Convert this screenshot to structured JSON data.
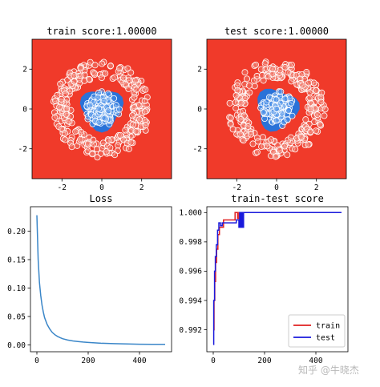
{
  "chart_data": [
    {
      "type": "scatter",
      "title": "train score:1.00000",
      "xlabel": "",
      "ylabel": "",
      "xlim": [
        -3.5,
        3.5
      ],
      "ylim": [
        -3.5,
        3.5
      ],
      "xticks": [
        "-2",
        "0",
        "2"
      ],
      "xtick_values": [
        -2,
        0,
        2
      ],
      "yticks": [
        "2",
        "0",
        "-2"
      ],
      "ytick_values": [
        2,
        0,
        -2
      ],
      "background_color": "#f03a2a",
      "inner_region_color": "#2a72d8",
      "inner_region_radius": 1.1,
      "inner_ring": {
        "radius_mean": 0.35,
        "radius_spread": 0.55,
        "count": 170
      },
      "outer_ring": {
        "radius_mean": 2.0,
        "radius_spread": 0.45,
        "count": 260
      },
      "grid": false
    },
    {
      "type": "scatter",
      "title": "test score:1.00000",
      "xlabel": "",
      "ylabel": "",
      "xlim": [
        -3.5,
        3.5
      ],
      "ylim": [
        -3.5,
        3.5
      ],
      "xticks": [
        "-2",
        "0",
        "2"
      ],
      "xtick_values": [
        -2,
        0,
        2
      ],
      "yticks": [
        "2",
        "0",
        "-2"
      ],
      "ytick_values": [
        2,
        0,
        -2
      ],
      "background_color": "#f03a2a",
      "inner_region_color": "#2a72d8",
      "inner_region_radius": 1.1,
      "inner_ring": {
        "radius_mean": 0.35,
        "radius_spread": 0.55,
        "count": 170
      },
      "outer_ring": {
        "radius_mean": 2.0,
        "radius_spread": 0.45,
        "count": 260
      },
      "grid": false
    },
    {
      "type": "line",
      "title": "Loss",
      "xlabel": "",
      "ylabel": "",
      "xlim": [
        -25,
        525
      ],
      "ylim": [
        -0.012,
        0.243
      ],
      "xticks": [
        "0",
        "200",
        "400"
      ],
      "xtick_values": [
        0,
        200,
        400
      ],
      "yticks": [
        "0.20",
        "0.15",
        "0.10",
        "0.05",
        "0.00"
      ],
      "ytick_values": [
        0.2,
        0.15,
        0.1,
        0.05,
        0.0
      ],
      "series": [
        {
          "color": "#3a86c8",
          "x": [
            0,
            5,
            10,
            15,
            20,
            25,
            30,
            40,
            50,
            60,
            70,
            80,
            90,
            100,
            120,
            140,
            160,
            180,
            200,
            250,
            300,
            350,
            400,
            450,
            500
          ],
          "y": [
            0.228,
            0.15,
            0.11,
            0.087,
            0.07,
            0.058,
            0.048,
            0.036,
            0.028,
            0.022,
            0.018,
            0.015,
            0.013,
            0.011,
            0.0085,
            0.007,
            0.006,
            0.005,
            0.0043,
            0.003,
            0.0022,
            0.0017,
            0.0013,
            0.0011,
            0.0009
          ]
        }
      ],
      "grid": false
    },
    {
      "type": "line",
      "title": "train-test score",
      "xlabel": "",
      "ylabel": "",
      "xlim": [
        -25,
        525
      ],
      "ylim": [
        0.9905,
        1.0004
      ],
      "xticks": [
        "0",
        "200",
        "400"
      ],
      "xtick_values": [
        0,
        200,
        400
      ],
      "yticks": [
        "1.000",
        "0.998",
        "0.996",
        "0.994",
        "0.992"
      ],
      "ytick_values": [
        1.0,
        0.998,
        0.996,
        0.994,
        0.992
      ],
      "legend_position": "lower-right",
      "series": [
        {
          "name": "train",
          "color": "#e02020",
          "x": [
            0,
            3,
            3,
            6,
            6,
            9,
            9,
            13,
            13,
            18,
            18,
            24,
            24,
            30,
            30,
            40,
            40,
            55,
            55,
            70,
            70,
            85,
            85,
            95,
            95,
            100,
            100,
            500
          ],
          "y": [
            0.992,
            0.992,
            0.994,
            0.994,
            0.9953,
            0.9953,
            0.9966,
            0.9966,
            0.9975,
            0.9975,
            0.9985,
            0.9985,
            0.999,
            0.999,
            0.999,
            0.999,
            0.9995,
            0.9995,
            0.9995,
            0.9995,
            0.9995,
            0.9995,
            1.0,
            1.0,
            0.9996,
            0.9996,
            1.0,
            1.0
          ]
        },
        {
          "name": "test",
          "color": "#1a1adc",
          "x": [
            0,
            2,
            2,
            5,
            5,
            8,
            8,
            12,
            12,
            17,
            17,
            22,
            22,
            28,
            28,
            35,
            35,
            50,
            50,
            70,
            70,
            90,
            90,
            100,
            100,
            103,
            103,
            107,
            107,
            110,
            110,
            114,
            114,
            118,
            118,
            500
          ],
          "y": [
            0.991,
            0.991,
            0.994,
            0.994,
            0.996,
            0.996,
            0.997,
            0.997,
            0.9978,
            0.9978,
            0.9988,
            0.9988,
            0.9993,
            0.9993,
            0.9991,
            0.9991,
            0.9993,
            0.9993,
            0.9993,
            0.9993,
            0.9993,
            0.9993,
            0.9995,
            0.9995,
            0.999,
            0.999,
            1.0,
            1.0,
            0.999,
            0.999,
            1.0,
            1.0,
            0.999,
            0.999,
            1.0,
            1.0
          ]
        }
      ],
      "grid": false
    }
  ],
  "watermark": "知乎 @牛晓杰"
}
